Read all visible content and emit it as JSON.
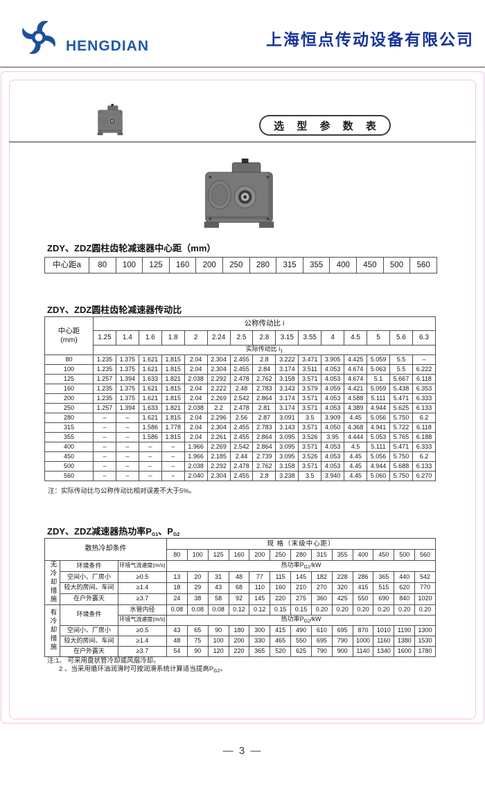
{
  "colors": {
    "header_blue": "#16339b",
    "logo_blue": "#1c4f9c",
    "border_pink": "#f0c4e4"
  },
  "header": {
    "logo_text": "HENGDIAN",
    "company_name": "上海恒点传动设备有限公司"
  },
  "badge": {
    "label": "选 型 参 数 表"
  },
  "footer": {
    "page_number": "— 3 —"
  },
  "table1": {
    "title": "ZDY、ZDZ圆柱齿轮减速器中心距（mm）",
    "row_header": "中心距a",
    "values": [
      "80",
      "100",
      "125",
      "160",
      "200",
      "250",
      "280",
      "315",
      "355",
      "400",
      "450",
      "500",
      "560"
    ]
  },
  "table2": {
    "title": "ZDY、ZDZ圆柱齿轮减速器传动比",
    "corner_line1": "中心距",
    "corner_line2": "(mm)",
    "nominal_header": "公称传动比 i",
    "actual_header_prefix": "实际传动比 i",
    "actual_header_sub": "1",
    "ratios": [
      "1.25",
      "1.4",
      "1.6",
      "1.8",
      "2",
      "2.24",
      "2.5",
      "2.8",
      "3.15",
      "3.55",
      "4",
      "4.5",
      "5",
      "5.6",
      "6.3"
    ],
    "rows": [
      {
        "center": "80",
        "values": [
          "1.235",
          "1.375",
          "1.621",
          "1.815",
          "2.04",
          "2.304",
          "2.455",
          "2.8",
          "3.222",
          "3.471",
          "3.905",
          "4.425",
          "5.059",
          "5.5",
          "–"
        ]
      },
      {
        "center": "100",
        "values": [
          "1.235",
          "1.375",
          "1.621",
          "1.815",
          "2.04",
          "2.304",
          "2.455",
          "2.84",
          "3.174",
          "3.511",
          "4.053",
          "4.674",
          "5.063",
          "5.5",
          "6.222"
        ]
      },
      {
        "center": "125",
        "values": [
          "1.257",
          "1.394",
          "1.633",
          "1.821",
          "2.038",
          "2.292",
          "2.478",
          "2.762",
          "3.158",
          "3.571",
          "4.053",
          "4.674",
          "5.1",
          "5.667",
          "6.118"
        ]
      },
      {
        "center": "160",
        "values": [
          "1.235",
          "1.375",
          "1.621",
          "1.815",
          "2.04",
          "2.222",
          "2.48",
          "2.783",
          "3.143",
          "3.579",
          "4.059",
          "4.421",
          "5.059",
          "5.438",
          "6.353"
        ]
      },
      {
        "center": "200",
        "values": [
          "1.235",
          "1.375",
          "1.621",
          "1.815",
          "2.04",
          "2.269",
          "2.542",
          "2.864",
          "3.174",
          "3.571",
          "4.053",
          "4.588",
          "5.111",
          "5.471",
          "6.333"
        ]
      },
      {
        "center": "250",
        "values": [
          "1.257",
          "1.394",
          "1.633",
          "1.821",
          "2.038",
          "2.2",
          "2.478",
          "2.81",
          "3.174",
          "3.571",
          "4.053",
          "4.389",
          "4.944",
          "5.625",
          "6.133"
        ]
      },
      {
        "center": "280",
        "values": [
          "–",
          "–",
          "1.621",
          "1.815",
          "2.04",
          "2.296",
          "2.56",
          "2.87",
          "3.091",
          "3.5",
          "3.909",
          "4.45",
          "5.056",
          "5.750",
          "6.2"
        ]
      },
      {
        "center": "315",
        "values": [
          "–",
          "–",
          "1.586",
          "1.778",
          "2.04",
          "2.304",
          "2.455",
          "2.783",
          "3.143",
          "3.571",
          "4.050",
          "4.368",
          "4.941",
          "5.722",
          "6.118"
        ]
      },
      {
        "center": "355",
        "values": [
          "–",
          "–",
          "1.586",
          "1.815",
          "2.04",
          "2.261",
          "2.455",
          "2.864",
          "3.095",
          "3.526",
          "3.95",
          "4.444",
          "5.053",
          "5.765",
          "6.188"
        ]
      },
      {
        "center": "400",
        "values": [
          "–",
          "–",
          "–",
          "–",
          "1.966",
          "2.269",
          "2.542",
          "2.864",
          "3.095",
          "3.571",
          "4.053",
          "4.5",
          "5.111",
          "5.471",
          "6.333"
        ]
      },
      {
        "center": "450",
        "values": [
          "–",
          "–",
          "–",
          "–",
          "1.966",
          "2.185",
          "2.44",
          "2.739",
          "3.095",
          "3.526",
          "4.053",
          "4.45",
          "5.056",
          "5.750",
          "6.2"
        ]
      },
      {
        "center": "500",
        "values": [
          "–",
          "–",
          "–",
          "–",
          "2.038",
          "2.292",
          "2.478",
          "2.762",
          "3.158",
          "3.571",
          "4.053",
          "4.45",
          "4.944",
          "5.688",
          "6.133"
        ]
      },
      {
        "center": "560",
        "values": [
          "–",
          "–",
          "–",
          "–",
          "2.040",
          "2.304",
          "2.455",
          "2.8",
          "3.238",
          "3.5",
          "3.940",
          "4.45",
          "5.060",
          "5.750",
          "6.270"
        ]
      }
    ],
    "note": "注：实际传动比与公称传动比相对误差不大于5%。"
  },
  "table3": {
    "title_prefix": "ZDY、ZDZ减速器热功率P",
    "title_sub1": "G1",
    "title_mid": "、P",
    "title_sub2": "G2",
    "cooling_header": "散热冷却条件",
    "spec_header": "规  格（末级中心距）",
    "sizes": [
      "80",
      "100",
      "125",
      "160",
      "200",
      "250",
      "280",
      "315",
      "355",
      "400",
      "450",
      "500",
      "560"
    ],
    "no_cooling": {
      "label": "无冷却措施",
      "env_label": "环境条件",
      "airflow_label": "环境气流速度(m/s)",
      "power_prefix": "热功率P",
      "power_sub": "G1",
      "power_suffix": "/kW",
      "rows": [
        {
          "label": "空间小、厂房小",
          "speed": "≥0.5",
          "values": [
            "13",
            "20",
            "31",
            "48",
            "77",
            "115",
            "145",
            "182",
            "228",
            "286",
            "365",
            "440",
            "542"
          ]
        },
        {
          "label": "较大的房间、车间",
          "speed": "≥1.4",
          "values": [
            "18",
            "29",
            "43",
            "68",
            "110",
            "160",
            "210",
            "270",
            "320",
            "415",
            "515",
            "620",
            "770"
          ]
        },
        {
          "label": "在户外露天",
          "speed": "≥3.7",
          "values": [
            "24",
            "38",
            "58",
            "92",
            "145",
            "220",
            "275",
            "360",
            "425",
            "550",
            "690",
            "840",
            "1020"
          ]
        }
      ]
    },
    "with_cooling": {
      "label": "有冷却措施",
      "env_label": "环境条件",
      "pipe_label": "水管内径",
      "pipe_values": [
        "0.08",
        "0.08",
        "0.08",
        "0.12",
        "0.12",
        "0.15",
        "0.15",
        "0.20",
        "0.20",
        "0.20",
        "0.20",
        "0.20",
        "0.20"
      ],
      "airflow_label": "环境气流速度(m/s)",
      "power_prefix": "热功率P",
      "power_sub": "G2",
      "power_suffix": "/kW",
      "rows": [
        {
          "label": "空间小、厂房小",
          "speed": "≥0.5",
          "values": [
            "43",
            "65",
            "90",
            "180",
            "300",
            "415",
            "490",
            "610",
            "695",
            "870",
            "1010",
            "1190",
            "1300"
          ]
        },
        {
          "label": "较大的房间、车间",
          "speed": "≥1.4",
          "values": [
            "48",
            "75",
            "100",
            "200",
            "330",
            "465",
            "550",
            "695",
            "790",
            "1000",
            "1160",
            "1380",
            "1530"
          ]
        },
        {
          "label": "在户外露天",
          "speed": "≥3.7",
          "values": [
            "54",
            "90",
            "120",
            "220",
            "365",
            "520",
            "625",
            "790",
            "900",
            "1140",
            "1340",
            "1600",
            "1780"
          ]
        }
      ]
    },
    "note_line1": "注:1、 可采用盘状管冷却或风扇冷却。",
    "note_line2_prefix": "2 、当采用循环油润滑时可按润滑系统计算适当提高P",
    "note_line2_sub": "G2",
    "note_line2_suffix": "。"
  }
}
